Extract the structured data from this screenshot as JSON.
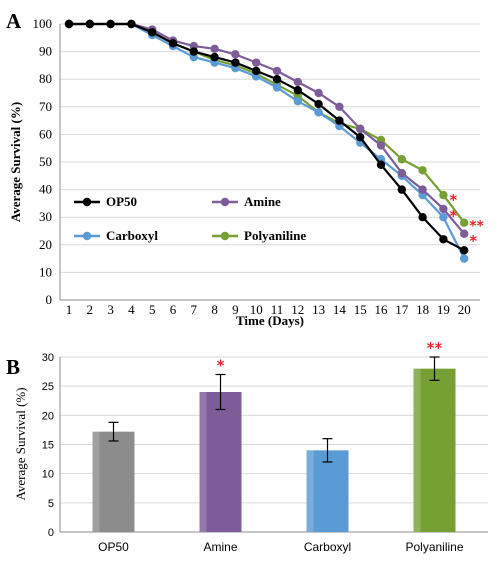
{
  "chart_data": [
    {
      "panel": "A",
      "type": "line",
      "xlabel": "Time (Days)",
      "ylabel": "Average Survival (%)",
      "ylim": [
        0,
        100
      ],
      "yticks": [
        0,
        10,
        20,
        30,
        40,
        50,
        60,
        70,
        80,
        90,
        100
      ],
      "x": [
        1,
        2,
        3,
        4,
        5,
        6,
        7,
        8,
        9,
        10,
        11,
        12,
        13,
        14,
        15,
        16,
        17,
        18,
        19,
        20
      ],
      "legend_position": "inside-lower-left",
      "series": [
        {
          "name": "OP50",
          "color": "#000000",
          "values": [
            100,
            100,
            100,
            100,
            97,
            93,
            90,
            88,
            86,
            83,
            80,
            76,
            71,
            65,
            59,
            49,
            40,
            30,
            22,
            18
          ]
        },
        {
          "name": "Amine",
          "color": "#7e5c9a",
          "values": [
            100,
            100,
            100,
            100,
            98,
            94,
            92,
            91,
            89,
            86,
            83,
            79,
            75,
            70,
            62,
            56,
            46,
            40,
            33,
            24
          ]
        },
        {
          "name": "Carboxyl",
          "color": "#5b9bd5",
          "values": [
            100,
            100,
            100,
            100,
            96,
            92,
            88,
            86,
            84,
            81,
            77,
            72,
            68,
            63,
            57,
            51,
            45,
            38,
            30,
            15
          ]
        },
        {
          "name": "Polyaniline",
          "color": "#77a033",
          "values": [
            100,
            100,
            100,
            100,
            97,
            93,
            90,
            87,
            85,
            82,
            78,
            74,
            68,
            64,
            62,
            58,
            51,
            47,
            38,
            28
          ]
        }
      ],
      "annotations": [
        {
          "text": "*",
          "series": "Polyaniline",
          "x": 19
        },
        {
          "text": "*",
          "series": "Amine",
          "x": 19
        },
        {
          "text": "**",
          "series": "Polyaniline",
          "x": 20
        },
        {
          "text": "*",
          "series": "Amine",
          "x": 20
        }
      ]
    },
    {
      "panel": "B",
      "type": "bar",
      "xlabel": "",
      "ylabel": "Average Survival (%)",
      "ylim": [
        0,
        30
      ],
      "yticks": [
        0,
        5,
        10,
        15,
        20,
        25,
        30
      ],
      "categories": [
        "OP50",
        "Amine",
        "Carboxyl",
        "Polyaniline"
      ],
      "values": [
        17.2,
        24,
        14,
        28
      ],
      "errors": [
        1.6,
        3,
        2,
        2
      ],
      "colors": [
        "#8c8c8c",
        "#7e5c9a",
        "#5b9bd5",
        "#77a033"
      ],
      "annotations": [
        "",
        "*",
        "",
        "**"
      ]
    }
  ]
}
